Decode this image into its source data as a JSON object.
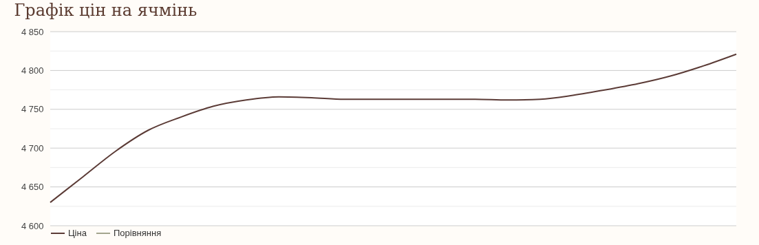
{
  "chart_data": {
    "type": "line",
    "title": "Графік цін на ячмінь",
    "categories": [
      null,
      null,
      null,
      null,
      null,
      null,
      null,
      null,
      null,
      null,
      null,
      null,
      null,
      null,
      null,
      null,
      null,
      null,
      null,
      null,
      null,
      null
    ],
    "series": [
      {
        "name": "Ціна",
        "color": "#5b3b36",
        "values": [
          4630,
          4663,
          4696,
          4723,
          4740,
          4754,
          4762,
          4766,
          4765,
          4763,
          4763,
          4763,
          4763,
          4763,
          4762,
          4763,
          4768,
          4775,
          4783,
          4793,
          4806,
          4821
        ]
      },
      {
        "name": "Порівняння",
        "color": "#a3a58e",
        "values": [
          null,
          null,
          null,
          null,
          null,
          null,
          null,
          null,
          null,
          null,
          null,
          null,
          null,
          null,
          null,
          null,
          null,
          null,
          null,
          null,
          null,
          null
        ]
      }
    ],
    "ylim": [
      4600,
      4850
    ],
    "yticks": [
      {
        "value": 4600,
        "label": "4 600"
      },
      {
        "value": 4625,
        "label": null
      },
      {
        "value": 4650,
        "label": "4 650"
      },
      {
        "value": 4675,
        "label": null
      },
      {
        "value": 4700,
        "label": "4 700"
      },
      {
        "value": 4725,
        "label": null
      },
      {
        "value": 4750,
        "label": "4 750"
      },
      {
        "value": 4775,
        "label": null
      },
      {
        "value": 4800,
        "label": "4 800"
      },
      {
        "value": 4825,
        "label": null
      },
      {
        "value": 4850,
        "label": "4 850"
      }
    ],
    "grid": "y",
    "legend": "bottom",
    "marker": "none",
    "line_style": "solid"
  }
}
